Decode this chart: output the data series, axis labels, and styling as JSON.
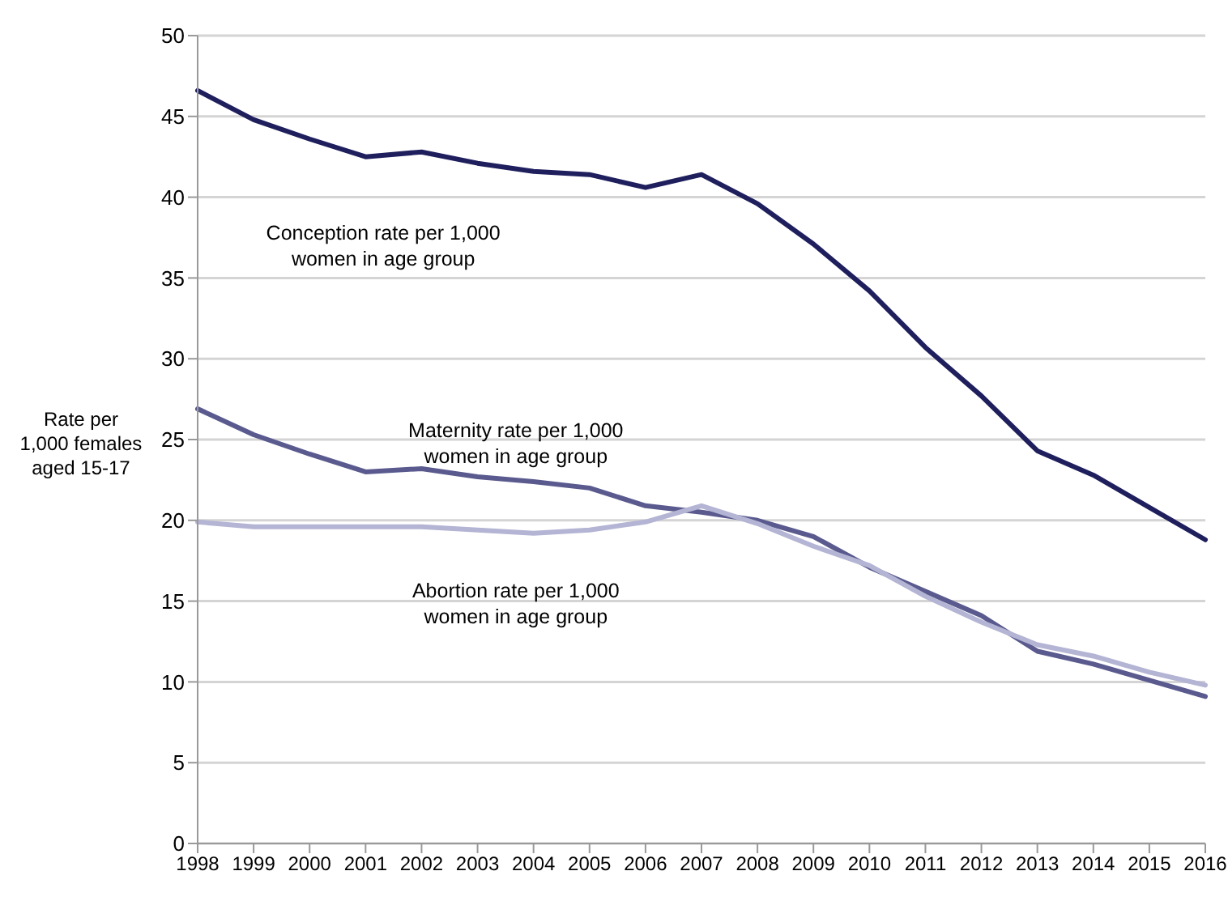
{
  "chart_data": {
    "type": "line",
    "ylabel": "Rate per 1,000 females aged 15-17",
    "categories": [
      "1998",
      "1999",
      "2000",
      "2001",
      "2002",
      "2003",
      "2004",
      "2005",
      "2006",
      "2007",
      "2008",
      "2009",
      "2010",
      "2011",
      "2012",
      "2013",
      "2014",
      "2015",
      "2016"
    ],
    "series": [
      {
        "name": "Conception rate per 1,000 women in age group",
        "color": "#1f1f5e",
        "values": [
          46.6,
          44.8,
          43.6,
          42.5,
          42.8,
          42.1,
          41.6,
          41.4,
          40.6,
          41.4,
          39.6,
          37.1,
          34.2,
          30.7,
          27.7,
          24.3,
          22.8,
          20.8,
          18.8
        ]
      },
      {
        "name": "Maternity rate per 1,000 women in age group",
        "color": "#5a5a8f",
        "values": [
          26.9,
          25.3,
          24.1,
          23.0,
          23.2,
          22.7,
          22.4,
          22.0,
          20.9,
          20.5,
          20.0,
          19.0,
          17.1,
          15.6,
          14.1,
          11.9,
          11.1,
          10.1,
          9.1
        ]
      },
      {
        "name": "Abortion rate per 1,000 women in age group",
        "color": "#b4b4d4",
        "values": [
          19.9,
          19.6,
          19.6,
          19.6,
          19.6,
          19.4,
          19.2,
          19.4,
          19.9,
          20.9,
          19.8,
          18.4,
          17.2,
          15.3,
          13.7,
          12.3,
          11.6,
          10.6,
          9.8
        ]
      }
    ],
    "ylim": [
      0,
      50
    ],
    "yticks": [
      0,
      5,
      10,
      15,
      20,
      25,
      30,
      35,
      40,
      45,
      50
    ],
    "grid": "y",
    "legend": false,
    "marker": "none",
    "line_style": "solid"
  }
}
